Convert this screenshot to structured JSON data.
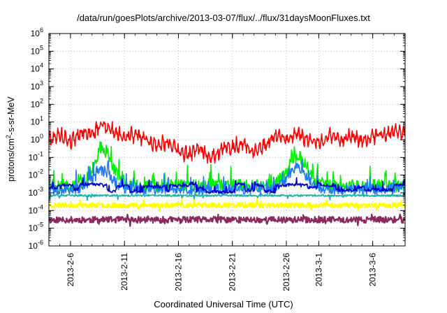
{
  "chart_data": {
    "type": "line",
    "title": "/data/run/goesPlots/archive/2013-03-07/flux/../flux/31daysMoonFluxes.txt",
    "xlabel": "Coordinated Universal Time (UTC)",
    "ylabel": {
      "pre": "protons/cm",
      "sup": "2",
      "post": "-s-sr-MeV"
    },
    "yscale": "log",
    "ylim": [
      1e-06,
      1000000.0
    ],
    "xlim": [
      "2013-02-04T00:00",
      "2013-03-09T00:00"
    ],
    "grid": true,
    "legend": "none",
    "yticks": [
      {
        "value": 1e-06,
        "base": "10",
        "exp": "-6"
      },
      {
        "value": 1e-05,
        "base": "10",
        "exp": "-5"
      },
      {
        "value": 0.0001,
        "base": "10",
        "exp": "-4"
      },
      {
        "value": 0.001,
        "base": "10",
        "exp": "-3"
      },
      {
        "value": 0.01,
        "base": "10",
        "exp": "-2"
      },
      {
        "value": 0.1,
        "base": "10",
        "exp": "-1"
      },
      {
        "value": 1,
        "base": "10",
        "exp": "0"
      },
      {
        "value": 10,
        "base": "10",
        "exp": "1"
      },
      {
        "value": 100,
        "base": "10",
        "exp": "2"
      },
      {
        "value": 1000,
        "base": "10",
        "exp": "3"
      },
      {
        "value": 10000,
        "base": "10",
        "exp": "4"
      },
      {
        "value": 100000,
        "base": "10",
        "exp": "5"
      },
      {
        "value": 1000000,
        "base": "10",
        "exp": "6"
      }
    ],
    "xticks": [
      {
        "date": "2013-02-06",
        "label": "2013-2-6"
      },
      {
        "date": "2013-02-11",
        "label": "2013-2-11"
      },
      {
        "date": "2013-02-16",
        "label": "2013-2-16"
      },
      {
        "date": "2013-02-21",
        "label": "2013-2-21"
      },
      {
        "date": "2013-02-26",
        "label": "2013-2-26"
      },
      {
        "date": "2013-03-01",
        "label": "2013-3-1"
      },
      {
        "date": "2013-03-06",
        "label": "2013-3-6"
      }
    ],
    "series": [
      {
        "color": "#8b2a5e",
        "line_width": 2.2,
        "profile": "flat",
        "level": 3e-05,
        "noise": 0.18,
        "seed": 11
      },
      {
        "color": "#ffff00",
        "line_width": 2.2,
        "profile": "flat",
        "level": 0.0002,
        "noise": 0.14,
        "seed": 23
      },
      {
        "color": "#1fb3a8",
        "line_width": 1.8,
        "profile": "flat",
        "level": 0.0007,
        "noise": 0.05,
        "seed": 37
      },
      {
        "color": "#00ee00",
        "line_width": 1.6,
        "profile": "spiky",
        "level": 0.003,
        "noise": 0.35,
        "bumps": [
          {
            "date": "2013-02-09",
            "peak": 0.3
          },
          {
            "date": "2013-02-27",
            "peak": 0.15
          }
        ],
        "seed": 41
      },
      {
        "color": "#1e7bff",
        "line_width": 1.6,
        "profile": "spiky",
        "level": 0.0018,
        "noise": 0.3,
        "bumps": [
          {
            "date": "2013-02-09",
            "peak": 0.02
          },
          {
            "date": "2013-02-27",
            "peak": 0.03
          }
        ],
        "seed": 53
      },
      {
        "color": "#0000cc",
        "line_width": 1.6,
        "profile": "steps",
        "level": 0.002,
        "noise": 0.08,
        "seed": 67
      },
      {
        "color": "#ff0000",
        "line_width": 1.6,
        "profile": "red",
        "seed": 79,
        "anchors": [
          [
            "2013-02-04",
            1.0
          ],
          [
            "2013-02-05",
            2.0
          ],
          [
            "2013-02-06",
            0.8
          ],
          [
            "2013-02-07",
            3.0
          ],
          [
            "2013-02-08",
            2.0
          ],
          [
            "2013-02-09",
            8.0
          ],
          [
            "2013-02-10",
            3.0
          ],
          [
            "2013-02-11",
            1.5
          ],
          [
            "2013-02-12",
            2.0
          ],
          [
            "2013-02-13",
            1.0
          ],
          [
            "2013-02-14",
            0.5
          ],
          [
            "2013-02-15",
            0.8
          ],
          [
            "2013-02-16",
            0.2
          ],
          [
            "2013-02-17",
            0.15
          ],
          [
            "2013-02-18",
            0.3
          ],
          [
            "2013-02-19",
            0.1
          ],
          [
            "2013-02-20",
            0.3
          ],
          [
            "2013-02-21",
            0.4
          ],
          [
            "2013-02-22",
            0.6
          ],
          [
            "2013-02-23",
            0.2
          ],
          [
            "2013-02-24",
            0.5
          ],
          [
            "2013-02-25",
            2.0
          ],
          [
            "2013-02-26",
            1.0
          ],
          [
            "2013-02-27",
            2.0
          ],
          [
            "2013-02-28",
            1.0
          ],
          [
            "2013-03-01",
            0.6
          ],
          [
            "2013-03-02",
            2.0
          ],
          [
            "2013-03-03",
            1.0
          ],
          [
            "2013-03-04",
            1.5
          ],
          [
            "2013-03-05",
            0.8
          ],
          [
            "2013-03-06",
            1.5
          ],
          [
            "2013-03-07",
            2.0
          ],
          [
            "2013-03-08",
            3.0
          ],
          [
            "2013-03-09",
            2.5
          ]
        ]
      }
    ]
  }
}
